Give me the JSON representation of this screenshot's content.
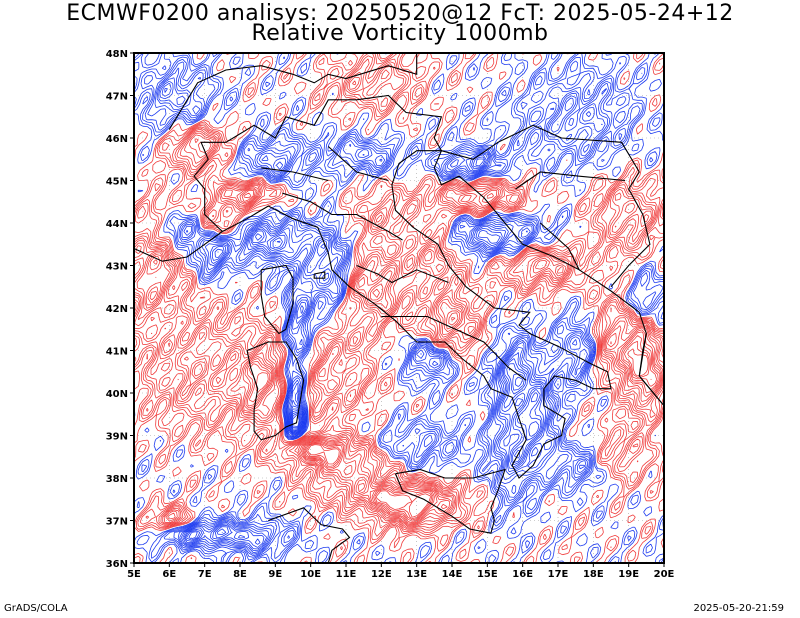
{
  "title_line1": "ECMWF0200 analisys: 20250520@12 FcT: 2025-05-24+12",
  "title_line2": "Relative Vorticity 1000mb",
  "footer_left": "GrADS/COLA",
  "footer_right": "2025-05-20-21:59",
  "map": {
    "lon_range": [
      5,
      20
    ],
    "lat_range": [
      36,
      48
    ],
    "x_tick_labels": [
      "5E",
      "6E",
      "7E",
      "8E",
      "9E",
      "10E",
      "11E",
      "12E",
      "13E",
      "14E",
      "15E",
      "16E",
      "17E",
      "18E",
      "19E",
      "20E"
    ],
    "y_tick_labels": [
      "36N",
      "37N",
      "38N",
      "39N",
      "40N",
      "41N",
      "42N",
      "43N",
      "44N",
      "45N",
      "46N",
      "47N",
      "48N"
    ],
    "colors": {
      "positive_vorticity": "#f03c3c",
      "negative_vorticity": "#1e3cf0",
      "coastline": "#000000",
      "grid": "#a0a0a0"
    }
  }
}
